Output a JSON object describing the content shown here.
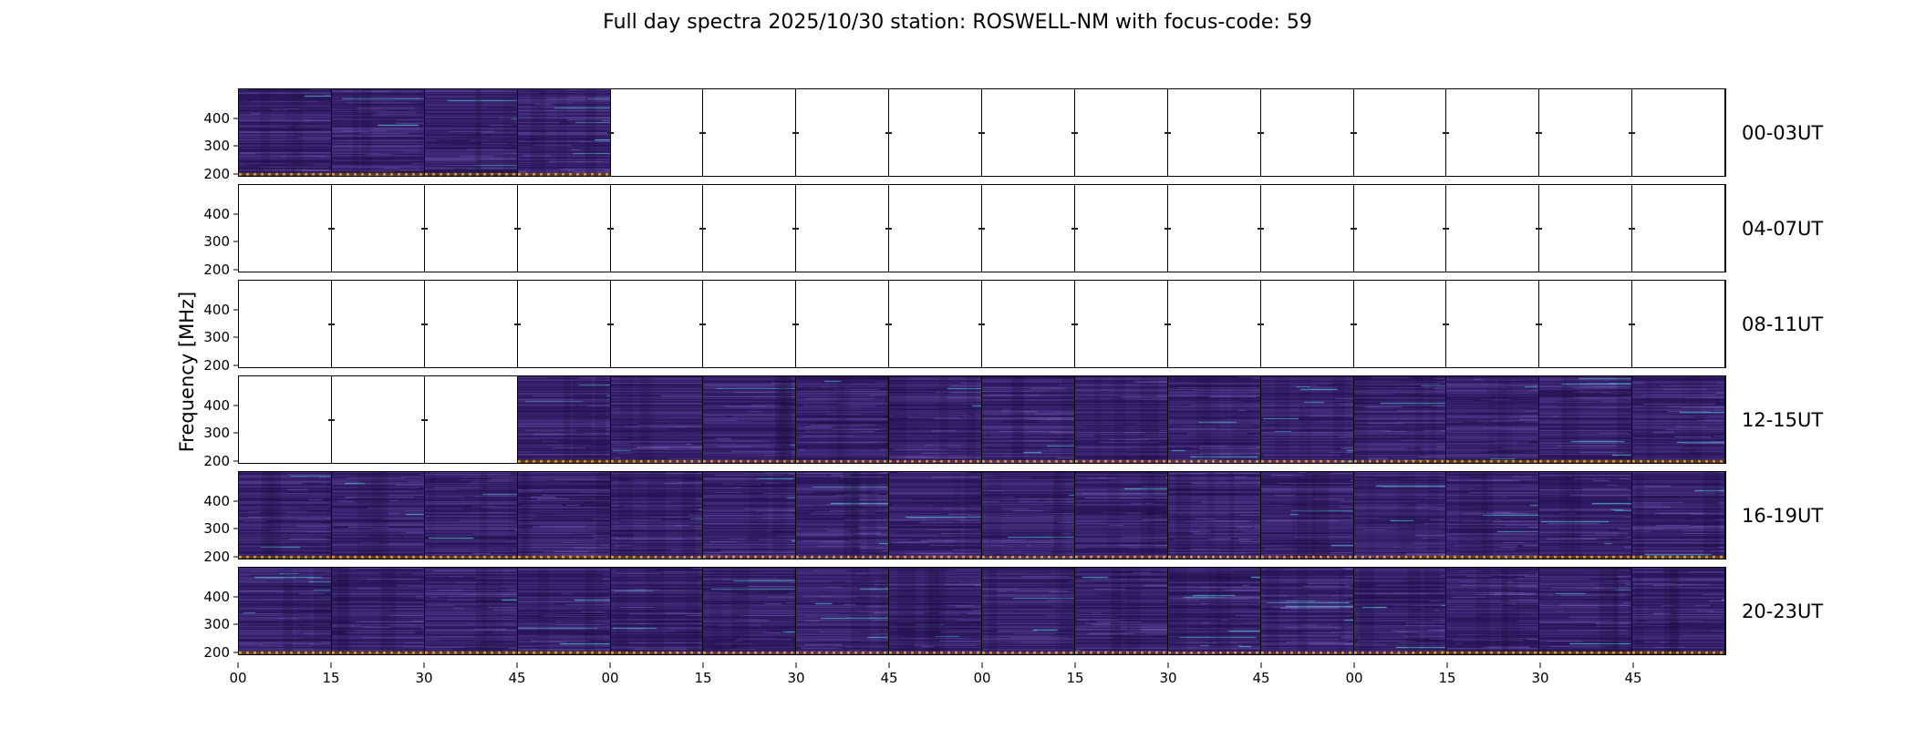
{
  "title": "Full day spectra 2025/10/30 station: ROSWELL-NM with focus-code: 59",
  "ylabel": "Frequency [MHz]",
  "yticks": [
    "400",
    "300",
    "200"
  ],
  "xticks": [
    "00",
    "15",
    "30",
    "45",
    "00",
    "15",
    "30",
    "45",
    "00",
    "15",
    "30",
    "45",
    "00",
    "15",
    "30",
    "45"
  ],
  "rows": [
    {
      "label": "00-03UT",
      "segments": [
        1,
        1,
        1,
        1,
        0,
        0,
        0,
        0,
        0,
        0,
        0,
        0,
        0,
        0,
        0,
        0
      ]
    },
    {
      "label": "04-07UT",
      "segments": [
        0,
        0,
        0,
        0,
        0,
        0,
        0,
        0,
        0,
        0,
        0,
        0,
        0,
        0,
        0,
        0
      ]
    },
    {
      "label": "08-11UT",
      "segments": [
        0,
        0,
        0,
        0,
        0,
        0,
        0,
        0,
        0,
        0,
        0,
        0,
        0,
        0,
        0,
        0
      ]
    },
    {
      "label": "12-15UT",
      "segments": [
        0,
        0,
        0,
        1,
        1,
        1,
        1,
        1,
        1,
        1,
        1,
        1,
        1,
        1,
        1,
        1
      ]
    },
    {
      "label": "16-19UT",
      "segments": [
        1,
        1,
        1,
        1,
        1,
        1,
        1,
        1,
        1,
        1,
        1,
        1,
        1,
        1,
        1,
        1
      ]
    },
    {
      "label": "20-23UT",
      "segments": [
        1,
        1,
        1,
        1,
        1,
        1,
        1,
        1,
        1,
        1,
        1,
        1,
        1,
        1,
        1,
        1
      ]
    }
  ],
  "colors": {
    "background": "#ffffff",
    "spectrogram_base": "#321b66",
    "streak_light": "#7d69c3",
    "streak_bright": "#8c78d2",
    "streak_cyan": "#50cddc",
    "streak_dark": "#140a37",
    "dot_yellow": "#e8ae2c",
    "dot_dark": "#7a3c04",
    "axis": "#000000"
  },
  "chart_data": {
    "type": "heatmap",
    "title": "Full day spectra 2025/10/30 station: ROSWELL-NM with focus-code: 59",
    "station": "ROSWELL-NM",
    "date": "2025/10/30",
    "focus_code": "59",
    "ylabel": "Frequency [MHz]",
    "yticks": [
      400,
      300,
      200
    ],
    "ylim": [
      200,
      450
    ],
    "xtick_minutes_per_hour": [
      0,
      15,
      30,
      45
    ],
    "hours_per_row": 4,
    "segments_per_row": 16,
    "segment_duration_minutes": 15,
    "rows": [
      {
        "label": "00-03UT",
        "time_range": "00:00-04:00 UT",
        "data_present": "00:00-01:00"
      },
      {
        "label": "04-07UT",
        "time_range": "04:00-08:00 UT",
        "data_present": "none"
      },
      {
        "label": "08-11UT",
        "time_range": "08:00-12:00 UT",
        "data_present": "none"
      },
      {
        "label": "12-15UT",
        "time_range": "12:00-16:00 UT",
        "data_present": "12:45-16:00"
      },
      {
        "label": "16-19UT",
        "time_range": "16:00-20:00 UT",
        "data_present": "16:00-20:00"
      },
      {
        "label": "20-23UT",
        "time_range": "20:00-24:00 UT",
        "data_present": "20:00-24:00"
      }
    ],
    "colormap_description": "dark indigo-purple spectrogram with lighter horizontal interference streaks, occasional cyan bursts, and a yellow-orange dotted line along the 200 MHz bottom edge of observed segments"
  }
}
